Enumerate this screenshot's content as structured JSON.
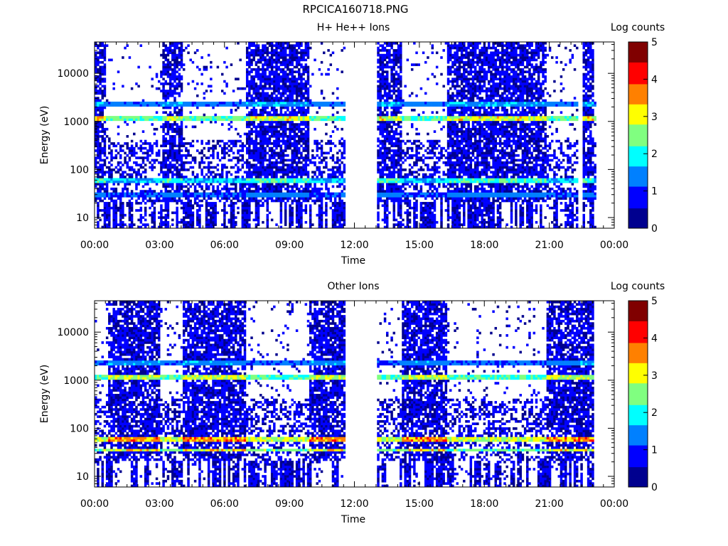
{
  "figure": {
    "title": "RPCICA160718.PNG"
  },
  "colorbar": {
    "label": "Log counts",
    "range": [
      0,
      5
    ],
    "ticks": [
      "0",
      "1",
      "2",
      "3",
      "4",
      "5"
    ],
    "colors": [
      "#00008f",
      "#0000ff",
      "#0080ff",
      "#00ffff",
      "#80ff80",
      "#ffff00",
      "#ff8000",
      "#ff0000",
      "#800000"
    ]
  },
  "chart_data": [
    {
      "type": "heatmap",
      "title": "H+ He++ Ions",
      "xlabel": "Time",
      "ylabel": "Energy (eV)",
      "yscale": "log",
      "xlim_hours": [
        0,
        24
      ],
      "ylim": [
        6,
        45000
      ],
      "xticks": [
        "00:00",
        "03:00",
        "06:00",
        "09:00",
        "12:00",
        "15:00",
        "18:00",
        "21:00",
        "00:00"
      ],
      "yticks": [
        "10",
        "100",
        "1000",
        "10000"
      ],
      "data_gaps_hours": [
        [
          11.6,
          13.0
        ],
        [
          22.3,
          22.5
        ],
        [
          23.2,
          24.0
        ]
      ],
      "dense_intervals_hours": [
        [
          0.0,
          0.55
        ],
        [
          3.1,
          4.1
        ],
        [
          7.0,
          9.9
        ],
        [
          13.0,
          14.2
        ],
        [
          16.3,
          20.9
        ],
        [
          22.5,
          23.1
        ]
      ],
      "bands": [
        {
          "name_hint": "",
          "energy_eV": 1200,
          "level": 3.0
        },
        {
          "name_hint": "",
          "energy_eV": 2400,
          "level": 1.6
        },
        {
          "name_hint": "",
          "energy_eV": 30,
          "level": 1.4
        },
        {
          "name_hint": "",
          "energy_eV": 60,
          "level": 2.2
        }
      ]
    },
    {
      "type": "heatmap",
      "title": "Other Ions",
      "xlabel": "Time",
      "ylabel": "Energy (eV)",
      "yscale": "log",
      "xlim_hours": [
        0,
        24
      ],
      "ylim": [
        6,
        45000
      ],
      "xticks": [
        "00:00",
        "03:00",
        "06:00",
        "09:00",
        "12:00",
        "15:00",
        "18:00",
        "21:00",
        "00:00"
      ],
      "yticks": [
        "10",
        "100",
        "1000",
        "10000"
      ],
      "data_gaps_hours": [
        [
          11.6,
          13.0
        ],
        [
          23.1,
          24.0
        ]
      ],
      "dense_intervals_hours": [
        [
          0.6,
          3.0
        ],
        [
          4.1,
          7.0
        ],
        [
          9.9,
          11.6
        ],
        [
          14.2,
          16.3
        ],
        [
          20.9,
          23.1
        ]
      ],
      "bands": [
        {
          "name_hint": "",
          "energy_eV": 1200,
          "level": 2.8
        },
        {
          "name_hint": "",
          "energy_eV": 2400,
          "level": 1.5
        },
        {
          "name_hint": "",
          "energy_eV": 35,
          "level": 3.1
        },
        {
          "name_hint": "",
          "energy_eV": 60,
          "level": 3.6
        }
      ]
    }
  ]
}
